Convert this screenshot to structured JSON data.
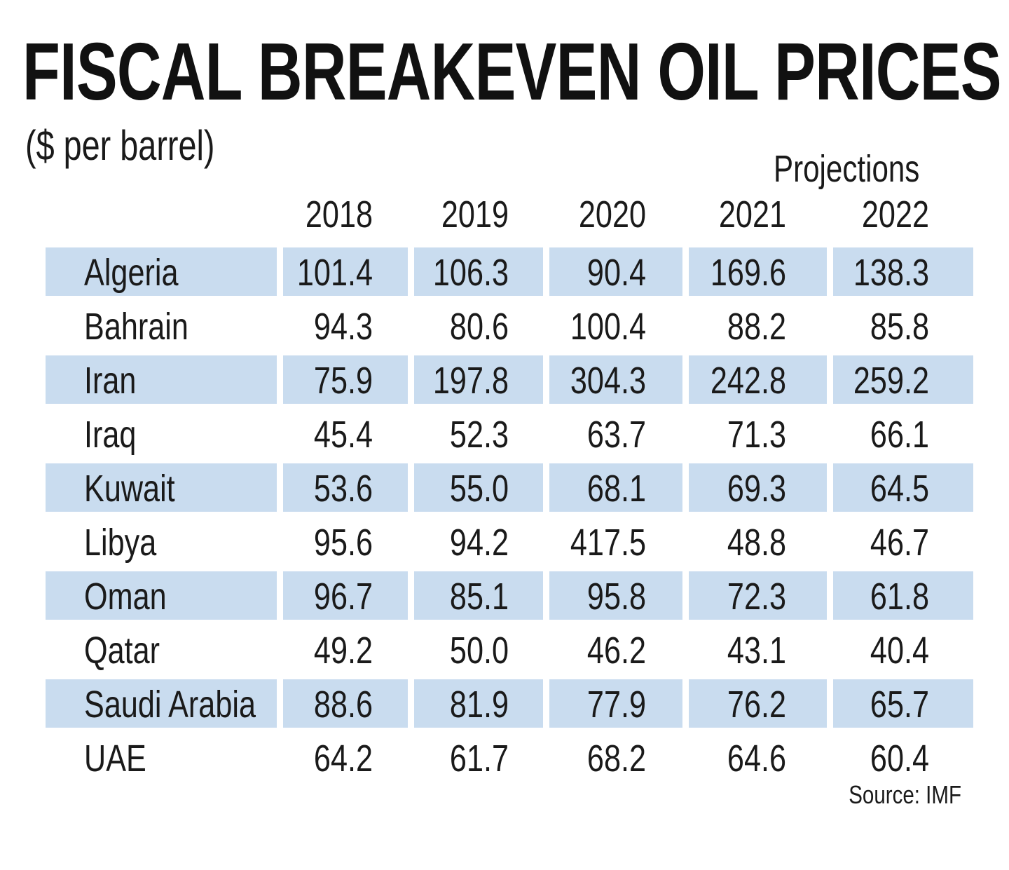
{
  "chart_data": {
    "type": "table",
    "title": "FISCAL BREAKEVEN OIL PRICES",
    "subtitle": "($ per barrel)",
    "projection_label": "Projections",
    "columns": [
      "2018",
      "2019",
      "2020",
      "2021",
      "2022"
    ],
    "rows": [
      {
        "country": "Algeria",
        "values": [
          "101.4",
          "106.3",
          "90.4",
          "169.6",
          "138.3"
        ]
      },
      {
        "country": "Bahrain",
        "values": [
          "94.3",
          "80.6",
          "100.4",
          "88.2",
          "85.8"
        ]
      },
      {
        "country": "Iran",
        "values": [
          "75.9",
          "197.8",
          "304.3",
          "242.8",
          "259.2"
        ]
      },
      {
        "country": "Iraq",
        "values": [
          "45.4",
          "52.3",
          "63.7",
          "71.3",
          "66.1"
        ]
      },
      {
        "country": "Kuwait",
        "values": [
          "53.6",
          "55.0",
          "68.1",
          "69.3",
          "64.5"
        ]
      },
      {
        "country": "Libya",
        "values": [
          "95.6",
          "94.2",
          "417.5",
          "48.8",
          "46.7"
        ]
      },
      {
        "country": "Oman",
        "values": [
          "96.7",
          "85.1",
          "95.8",
          "72.3",
          "61.8"
        ]
      },
      {
        "country": "Qatar",
        "values": [
          "49.2",
          "50.0",
          "46.2",
          "43.1",
          "40.4"
        ]
      },
      {
        "country": "Saudi Arabia",
        "values": [
          "88.6",
          "81.9",
          "77.9",
          "76.2",
          "65.7"
        ]
      },
      {
        "country": "UAE",
        "values": [
          "64.2",
          "61.7",
          "68.2",
          "64.6",
          "60.4"
        ]
      }
    ],
    "source": "Source: IMF",
    "colors": {
      "stripe": "#c9dcef",
      "text": "#1a1a1a"
    }
  }
}
